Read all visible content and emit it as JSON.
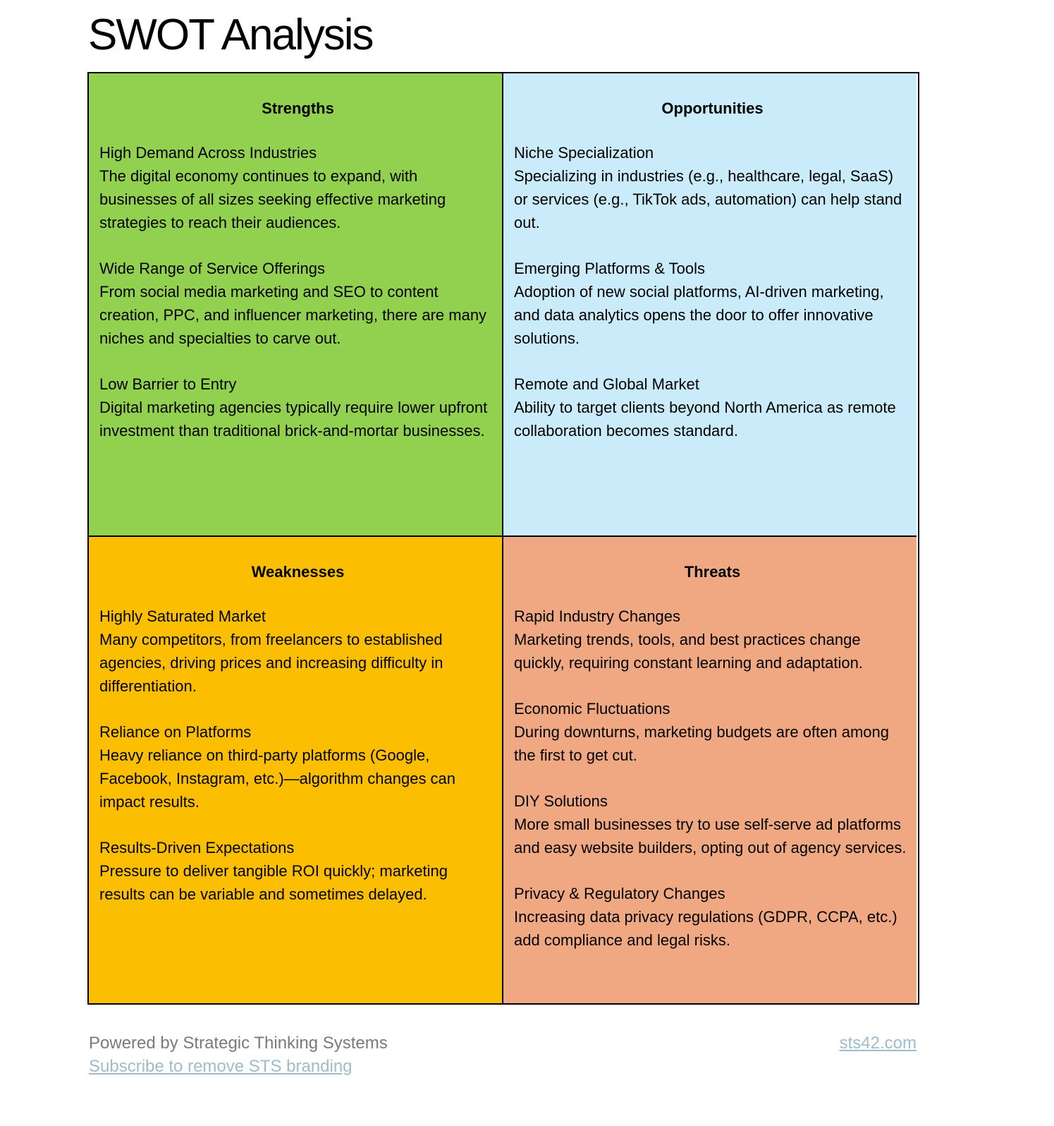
{
  "title": "SWOT Analysis",
  "colors": {
    "strengths": "#92d050",
    "opportunities": "#c9ebfa",
    "weaknesses": "#fcbe00",
    "threats": "#f0a882"
  },
  "quadrants": {
    "strengths": {
      "heading": "Strengths",
      "items": [
        {
          "title": "High Demand Across Industries",
          "text": "The digital economy continues to expand, with businesses of all sizes seeking effective marketing strategies to reach their audiences."
        },
        {
          "title": "Wide Range of Service Offerings",
          "text": "From social media marketing and SEO to content creation, PPC, and influencer marketing, there are many niches and specialties to carve out."
        },
        {
          "title": "Low Barrier to Entry",
          "text": "Digital marketing agencies typically require lower upfront investment than traditional brick-and-mortar businesses."
        }
      ]
    },
    "opportunities": {
      "heading": "Opportunities",
      "items": [
        {
          "title": "Niche Specialization",
          "text": "Specializing in industries (e.g., healthcare, legal, SaaS) or services (e.g., TikTok ads, automation) can help stand out."
        },
        {
          "title": "Emerging Platforms & Tools",
          "text": "Adoption of new social platforms, AI-driven marketing, and data analytics opens the door to offer innovative solutions."
        },
        {
          "title": "Remote and Global Market",
          "text": "Ability to target clients beyond North America as remote collaboration becomes standard."
        }
      ]
    },
    "weaknesses": {
      "heading": "Weaknesses",
      "items": [
        {
          "title": "Highly Saturated Market",
          "text": "Many competitors, from freelancers to established agencies, driving prices and increasing difficulty in differentiation."
        },
        {
          "title": "Reliance on Platforms",
          "text": "Heavy reliance on third-party platforms (Google, Facebook, Instagram, etc.)—algorithm changes can impact results."
        },
        {
          "title": "Results-Driven Expectations",
          "text": "Pressure to deliver tangible ROI quickly; marketing results can be variable and sometimes delayed."
        }
      ]
    },
    "threats": {
      "heading": "Threats",
      "items": [
        {
          "title": "Rapid Industry Changes",
          "text": "Marketing trends, tools, and best practices change quickly, requiring constant learning and adaptation."
        },
        {
          "title": "Economic Fluctuations",
          "text": "During downturns, marketing budgets are often among the first to get cut."
        },
        {
          "title": "DIY Solutions",
          "text": "More small businesses try to use self-serve ad platforms and easy website builders, opting out of agency services."
        },
        {
          "title": "Privacy & Regulatory Changes",
          "text": "Increasing data privacy regulations (GDPR, CCPA, etc.) add compliance and legal risks."
        }
      ]
    }
  },
  "footer": {
    "powered_by": "Powered by Strategic Thinking Systems",
    "subscribe_link": "Subscribe to remove STS branding",
    "site_link": "sts42.com"
  }
}
